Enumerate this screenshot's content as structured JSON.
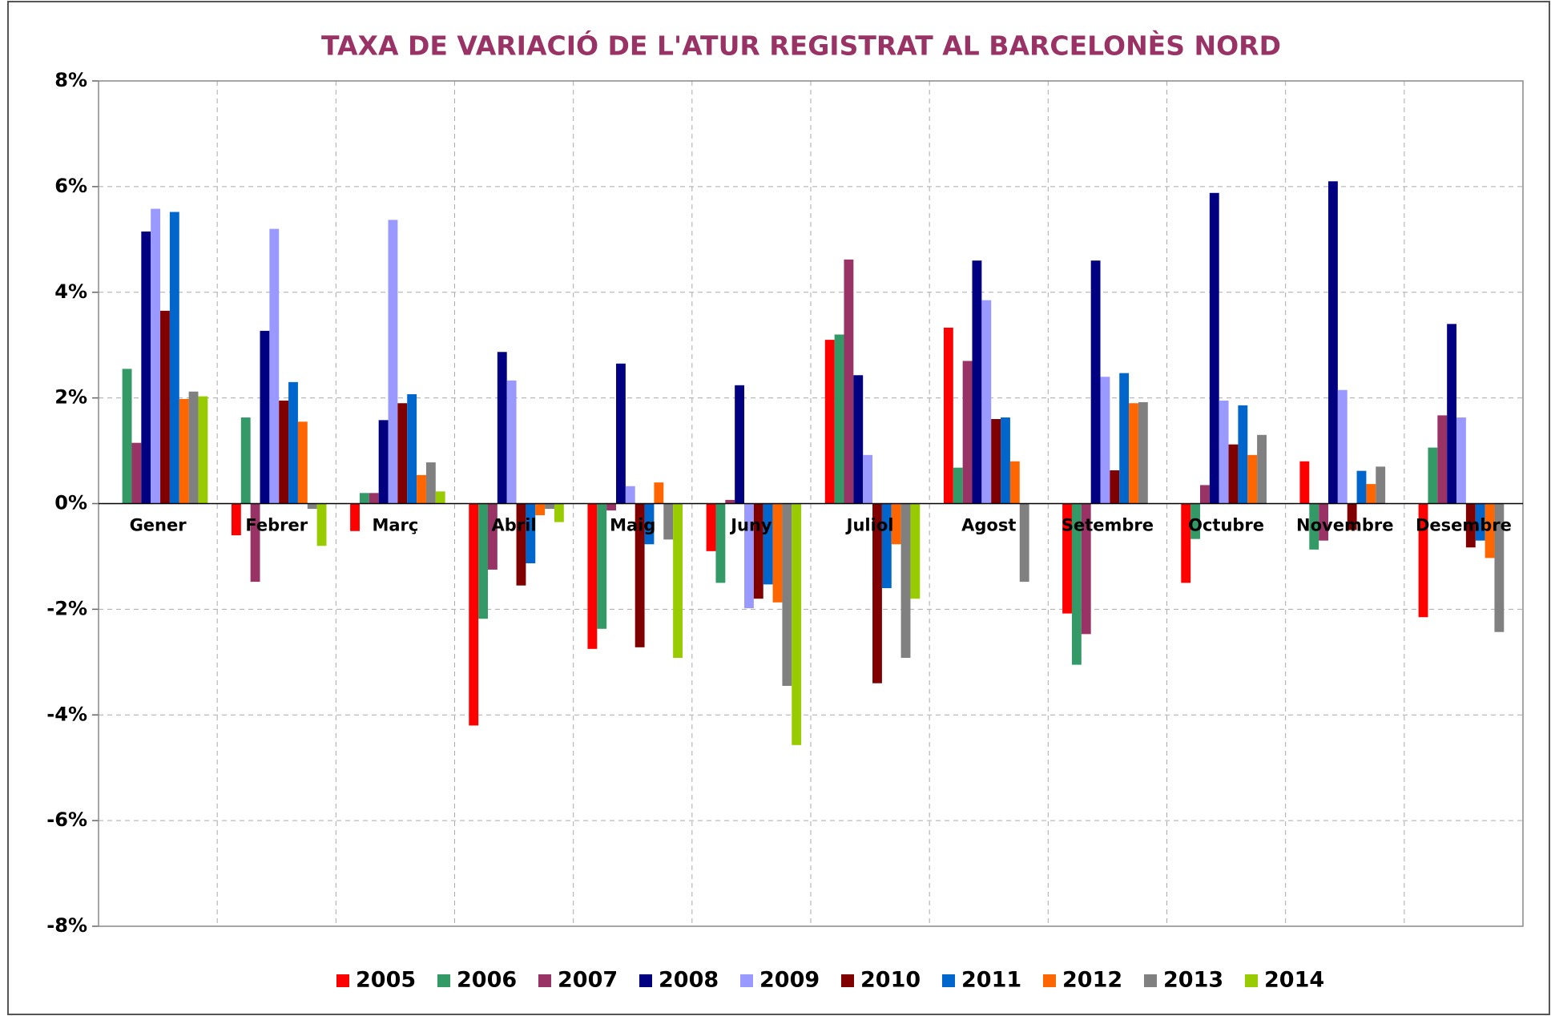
{
  "chart_data": {
    "type": "bar",
    "title": "TAXA DE VARIACIÓ DE L'ATUR REGISTRAT AL BARCELONÈS NORD",
    "categories": [
      "Gener",
      "Febrer",
      "Març",
      "Abril",
      "Maig",
      "Juny",
      "Juliol",
      "Agost",
      "Setembre",
      "Octubre",
      "Novembre",
      "Desembre"
    ],
    "series": [
      {
        "name": "2005",
        "color": "#ff0000",
        "values": [
          null,
          -0.6,
          -0.52,
          -4.2,
          -2.75,
          -0.9,
          3.1,
          3.33,
          -2.08,
          -1.5,
          0.8,
          -2.15
        ]
      },
      {
        "name": "2006",
        "color": "#339966",
        "values": [
          2.55,
          1.63,
          0.2,
          -2.18,
          -2.37,
          -1.5,
          3.2,
          0.68,
          -3.05,
          -0.67,
          -0.87,
          1.06
        ]
      },
      {
        "name": "2007",
        "color": "#993366",
        "values": [
          1.15,
          -1.48,
          0.2,
          -1.25,
          -0.13,
          0.07,
          4.62,
          2.7,
          -2.47,
          0.35,
          -0.7,
          1.67
        ]
      },
      {
        "name": "2008",
        "color": "#000080",
        "values": [
          5.15,
          3.27,
          1.58,
          2.87,
          2.65,
          2.24,
          2.43,
          4.6,
          4.6,
          5.88,
          6.1,
          3.4
        ]
      },
      {
        "name": "2009",
        "color": "#9999ff",
        "values": [
          5.58,
          5.2,
          5.37,
          2.33,
          0.33,
          -1.98,
          0.92,
          3.85,
          2.4,
          1.95,
          2.15,
          1.63
        ]
      },
      {
        "name": "2010",
        "color": "#800000",
        "values": [
          3.65,
          1.95,
          1.9,
          -1.55,
          -2.72,
          -1.8,
          -3.4,
          1.6,
          0.63,
          1.12,
          -0.5,
          -0.83
        ]
      },
      {
        "name": "2011",
        "color": "#0066cc",
        "values": [
          5.52,
          2.3,
          2.07,
          -1.13,
          -0.77,
          -1.53,
          -1.6,
          1.63,
          2.47,
          1.86,
          0.62,
          -0.7
        ]
      },
      {
        "name": "2012",
        "color": "#ff6600",
        "values": [
          1.98,
          1.55,
          0.54,
          -0.22,
          0.4,
          -1.87,
          -0.77,
          0.8,
          1.9,
          0.92,
          0.37,
          -1.03
        ]
      },
      {
        "name": "2013",
        "color": "#808080",
        "values": [
          2.12,
          -0.1,
          0.78,
          -0.1,
          -0.68,
          -3.45,
          -2.92,
          -1.48,
          1.92,
          1.3,
          0.7,
          -2.43
        ]
      },
      {
        "name": "2014",
        "color": "#99cc00",
        "values": [
          2.03,
          -0.8,
          0.23,
          -0.35,
          -2.92,
          -4.57,
          -1.8,
          null,
          null,
          null,
          null,
          null
        ]
      }
    ],
    "ylim": [
      -8,
      8
    ],
    "yticks": [
      {
        "value": -8,
        "label": "-8%"
      },
      {
        "value": -6,
        "label": "-6%"
      },
      {
        "value": -4,
        "label": "-4%"
      },
      {
        "value": -2,
        "label": "-2%"
      },
      {
        "value": 0,
        "label": "0%"
      },
      {
        "value": 2,
        "label": "2%"
      },
      {
        "value": 4,
        "label": "4%"
      },
      {
        "value": 6,
        "label": "6%"
      },
      {
        "value": 8,
        "label": "8%"
      }
    ],
    "grid": true
  }
}
